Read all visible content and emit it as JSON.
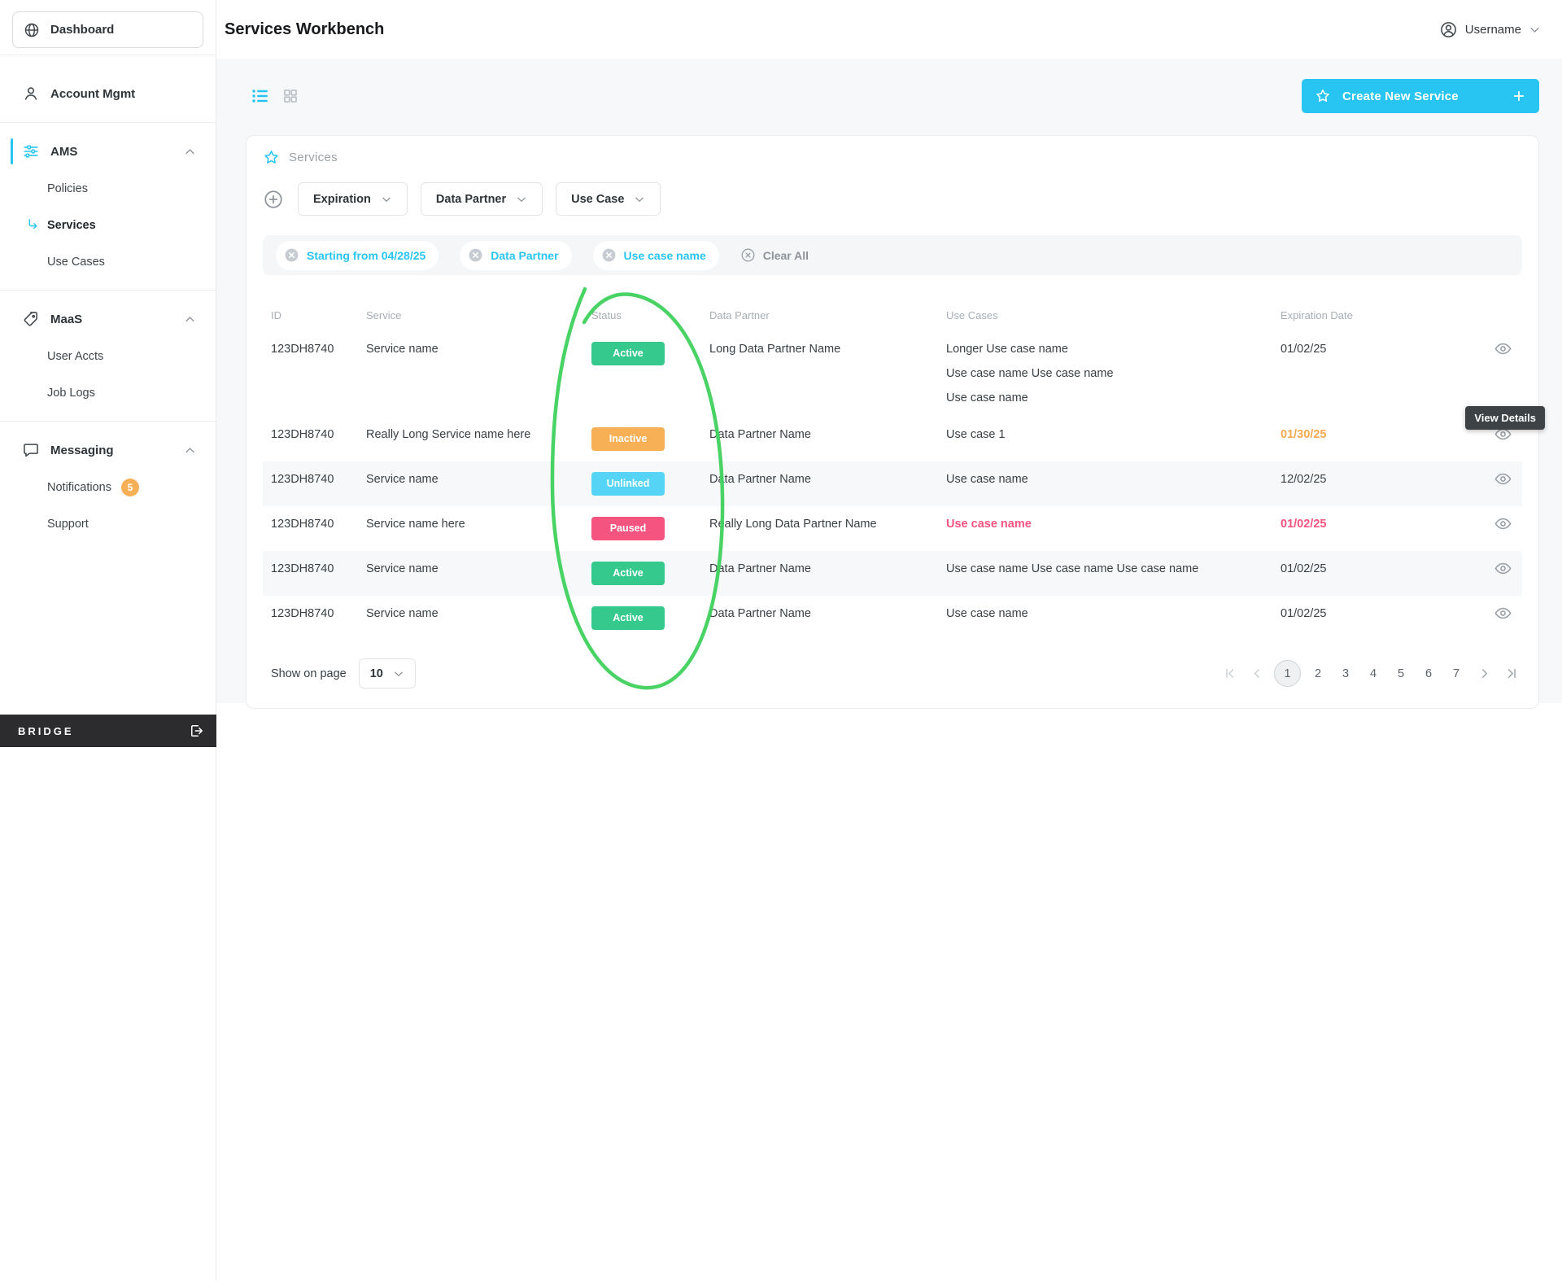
{
  "colors": {
    "accent": "#29c5f2",
    "annotation_green": "#3ed15c",
    "notification_badge": "#f8b057",
    "status": {
      "active": "#35c98e",
      "inactive": "#f8b057",
      "unlinked": "#55d4f5",
      "paused": "#f4547f"
    }
  },
  "sidebar": {
    "dashboard_label": "Dashboard",
    "bridge_label": "BRIDGE",
    "sections": [
      {
        "label": "Account Mgmt",
        "icon": "user",
        "items": []
      },
      {
        "label": "AMS",
        "icon": "sliders",
        "active": true,
        "items": [
          {
            "label": "Policies"
          },
          {
            "label": "Services",
            "active": true
          },
          {
            "label": "Use Cases"
          }
        ]
      },
      {
        "label": "MaaS",
        "icon": "tag",
        "items": [
          {
            "label": "User Accts"
          },
          {
            "label": "Job Logs"
          }
        ]
      },
      {
        "label": "Messaging",
        "icon": "chat",
        "items": [
          {
            "label": "Notifications",
            "badge": "5"
          },
          {
            "label": "Support"
          }
        ]
      }
    ]
  },
  "header": {
    "title": "Services Workbench",
    "username": "Username"
  },
  "toolbar": {
    "create_button_label": "Create New Service"
  },
  "card": {
    "title": "Services",
    "filters": [
      "Expiration",
      "Data Partner",
      "Use Case"
    ],
    "chips": [
      "Starting from 04/28/25",
      "Data Partner",
      "Use case name"
    ],
    "clear_all_label": "Clear All",
    "columns": [
      "ID",
      "Service",
      "Status",
      "Data Partner",
      "Use Cases",
      "Expiration Date"
    ],
    "rows": [
      {
        "id": "123DH8740",
        "service": "Service name",
        "status": {
          "label": "Active",
          "type": "active"
        },
        "partner": "Long Data Partner Name",
        "use_cases": [
          "Longer Use case name",
          "Use case name Use case name",
          "Use case name"
        ],
        "expiration": "01/02/25"
      },
      {
        "id": "123DH8740",
        "service": "Really Long Service name here",
        "status": {
          "label": "Inactive",
          "type": "inactive"
        },
        "partner": "Data Partner Name",
        "use_cases": [
          "Use case 1"
        ],
        "expiration": "01/30/25",
        "expiration_color": "#f5a94f"
      },
      {
        "id": "123DH8740",
        "service": "Service name",
        "status": {
          "label": "Unlinked",
          "type": "unlinked"
        },
        "partner": "Data Partner Name",
        "use_cases": [
          "Use case name"
        ],
        "expiration": "12/02/25",
        "striped": true
      },
      {
        "id": "123DH8740",
        "service": "Service name here",
        "status": {
          "label": "Paused",
          "type": "paused"
        },
        "partner": "Really Long Data Partner Name",
        "use_cases": [
          "Use case name"
        ],
        "use_case_color": "#f4547f",
        "expiration": "01/02/25",
        "expiration_color": "#f4547f"
      },
      {
        "id": "123DH8740",
        "service": "Service name",
        "status": {
          "label": "Active",
          "type": "active"
        },
        "partner": "Data Partner Name",
        "use_cases": [
          "Use case name Use case name Use case name"
        ],
        "expiration": "01/02/25",
        "striped": true
      },
      {
        "id": "123DH8740",
        "service": "Service name",
        "status": {
          "label": "Active",
          "type": "active"
        },
        "partner": "Data Partner Name",
        "use_cases": [
          "Use case name"
        ],
        "expiration": "01/02/25"
      }
    ],
    "tooltip": "View Details",
    "footer": {
      "show_on_page_label": "Show on page",
      "page_size": "10"
    },
    "pagination": {
      "pages": [
        "1",
        "2",
        "3",
        "4",
        "5",
        "6",
        "7"
      ],
      "current": "1"
    }
  }
}
